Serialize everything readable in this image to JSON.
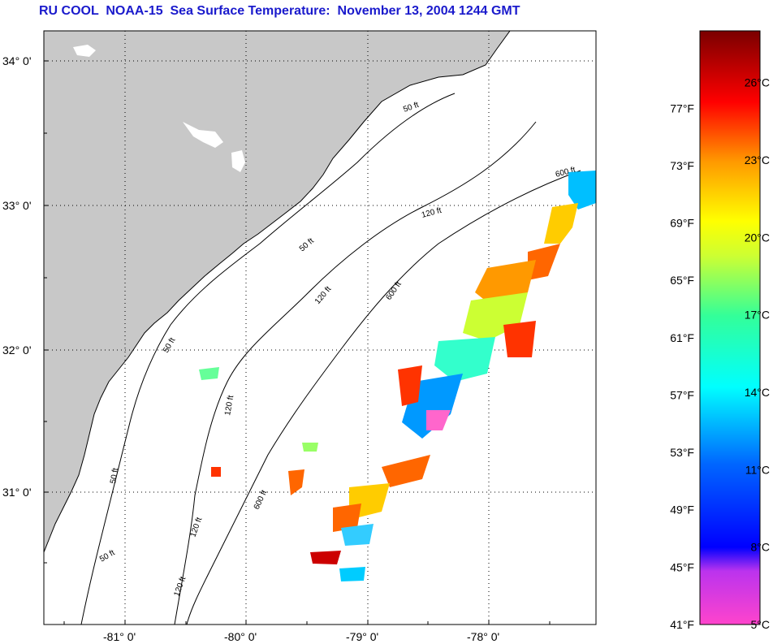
{
  "title": "RU COOL  NOAA-15  Sea Surface Temperature:  November 13, 2004 1244 GMT",
  "map": {
    "lon_range": [
      -81.65,
      -77.05
    ],
    "lat_range": [
      30.0,
      34.2
    ],
    "lat_ticks": [
      {
        "value": 34,
        "label": "34° 0'"
      },
      {
        "value": 33,
        "label": "33° 0'"
      },
      {
        "value": 32,
        "label": "32° 0'"
      },
      {
        "value": 31,
        "label": "31° 0'"
      }
    ],
    "lon_ticks": [
      {
        "value": -81,
        "label": "-81° 0'"
      },
      {
        "value": -80,
        "label": "-80° 0'"
      },
      {
        "value": -79,
        "label": "-79° 0'"
      },
      {
        "value": -78,
        "label": "-78° 0'"
      }
    ],
    "grid": "dotted",
    "land_color": "#c8c8c8",
    "water_color": "#ffffff",
    "contour_labels": [
      "50 ft",
      "120 ft",
      "600 ft"
    ]
  },
  "colorbar": {
    "fahrenheit_labels": [
      "77°F",
      "73°F",
      "69°F",
      "65°F",
      "61°F",
      "57°F",
      "53°F",
      "49°F",
      "45°F",
      "41°F"
    ],
    "fahrenheit_values": [
      77,
      73,
      69,
      65,
      61,
      57,
      53,
      49,
      45,
      41
    ],
    "celsius_labels": [
      "26°C",
      "23°C",
      "20°C",
      "17°C",
      "14°C",
      "11°C",
      "8°C",
      "5°C"
    ],
    "celsius_values": [
      26,
      23,
      20,
      17,
      14,
      11,
      8,
      5
    ],
    "range_c": [
      5,
      28
    ],
    "colors": [
      "#ff33cc",
      "#9933ff",
      "#0000ff",
      "#0099ff",
      "#00ffff",
      "#66ff66",
      "#ffff00",
      "#ff9900",
      "#ff0000",
      "#8b0000"
    ]
  }
}
